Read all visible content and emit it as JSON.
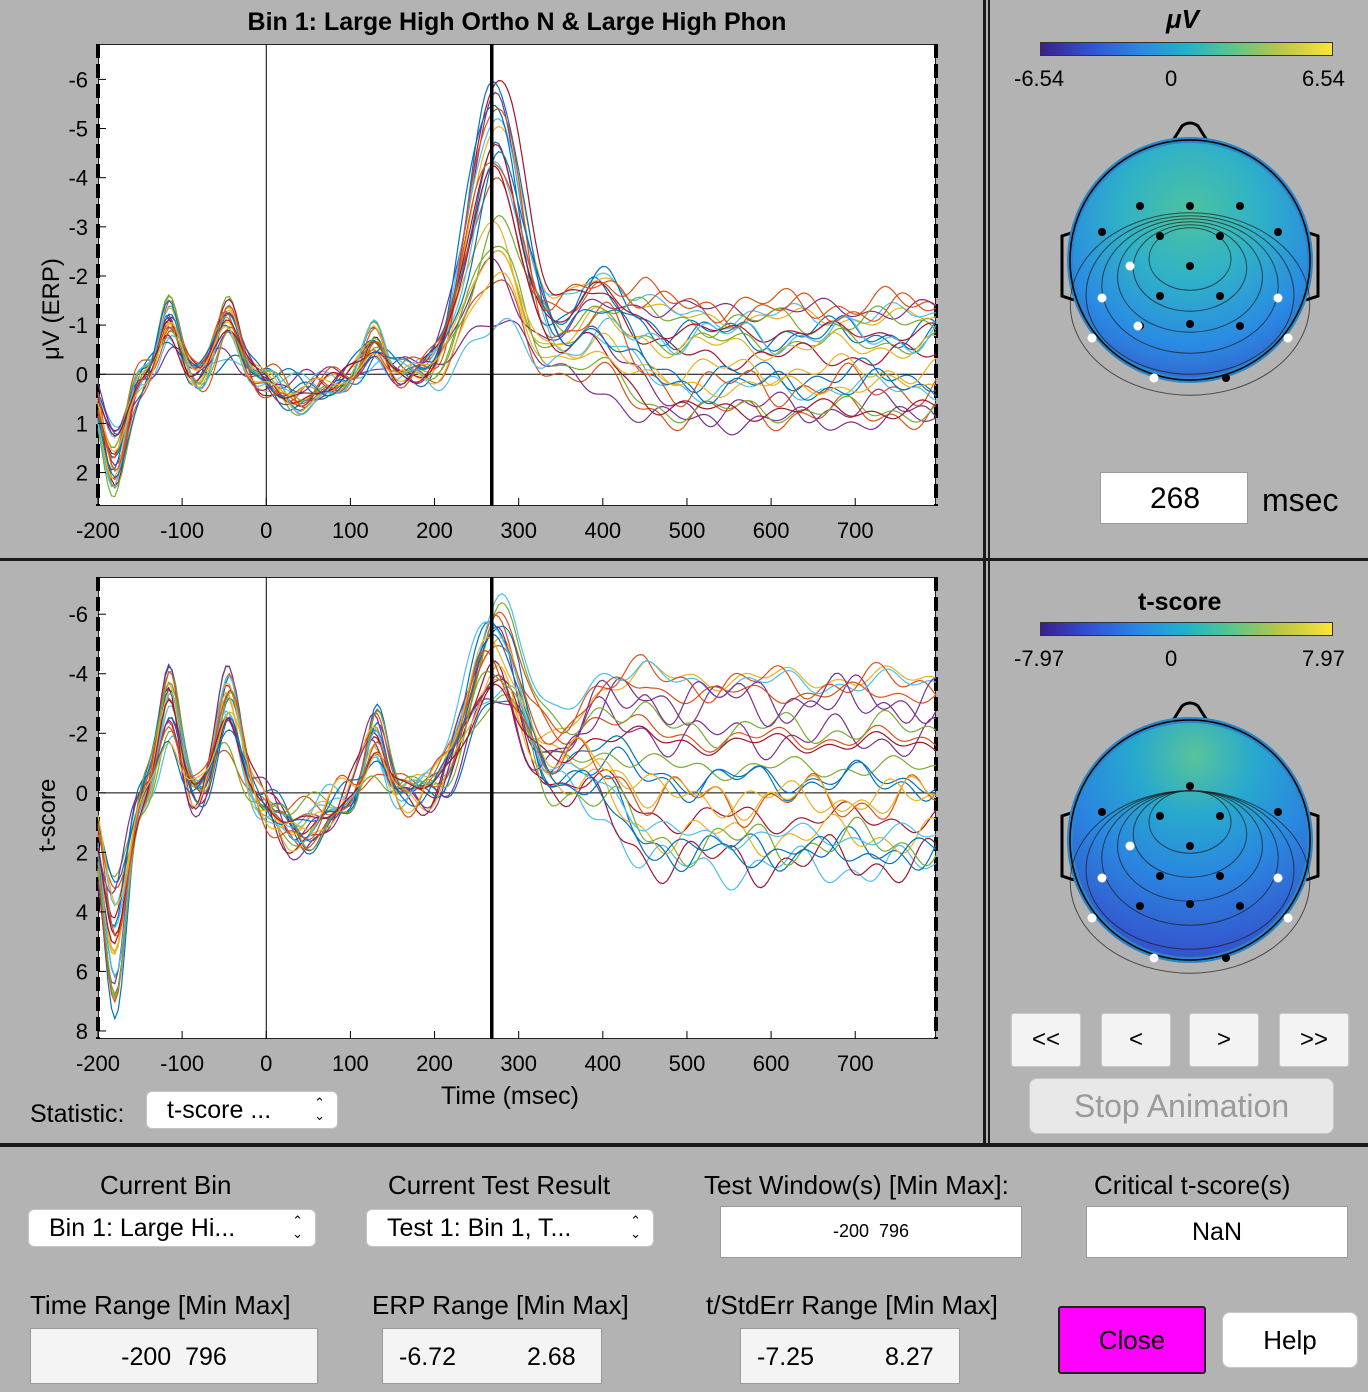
{
  "top_plot": {
    "title": "Bin 1: Large High Ortho N & Large High Phon",
    "ylabel": "μV (ERP)",
    "yticks": [
      "-6",
      "-5",
      "-4",
      "-3",
      "-2",
      "-1",
      "0",
      "1",
      "2"
    ],
    "xticks": [
      "-200",
      "-100",
      "0",
      "100",
      "200",
      "300",
      "400",
      "500",
      "600",
      "700"
    ]
  },
  "bottom_plot": {
    "ylabel": "t-score",
    "xlabel": "Time (msec)",
    "yticks": [
      "-6",
      "-4",
      "-2",
      "0",
      "2",
      "4",
      "6",
      "8"
    ],
    "xticks": [
      "-200",
      "-100",
      "0",
      "100",
      "200",
      "300",
      "400",
      "500",
      "600",
      "700"
    ]
  },
  "chart_data": [
    {
      "type": "line",
      "title": "Bin 1: Large High Ortho N & Large High Phon",
      "xlabel": "",
      "ylabel": "μV (ERP)",
      "xlim": [
        -200,
        796
      ],
      "ylim": [
        -6.72,
        2.68
      ],
      "y_reversed": true,
      "cursor_x": 268,
      "series_count": 24,
      "grid": false
    },
    {
      "type": "line",
      "title": "",
      "xlabel": "Time (msec)",
      "ylabel": "t-score",
      "xlim": [
        -200,
        796
      ],
      "ylim": [
        -7.25,
        8.27
      ],
      "y_reversed": true,
      "cursor_x": 268,
      "series_count": 24,
      "grid": false
    }
  ],
  "topo_top": {
    "colorbar_label": "μV",
    "cb_min": "-6.54",
    "cb_mid": "0",
    "cb_max": "6.54",
    "time_value": "268",
    "time_unit": "msec"
  },
  "topo_bottom": {
    "colorbar_label": "t-score",
    "cb_min": "-7.97",
    "cb_mid": "0",
    "cb_max": "7.97"
  },
  "colormap": [
    "#3b1f8a",
    "#3056d9",
    "#2a8be3",
    "#1fb3c9",
    "#55c78e",
    "#b9c647",
    "#fbe534"
  ],
  "nav": {
    "first": "<<",
    "prev": "<",
    "next": ">",
    "last": ">>",
    "stop": "Stop Animation"
  },
  "statistic": {
    "label": "Statistic:",
    "value": "t-score ..."
  },
  "controls": {
    "current_bin_label": "Current Bin",
    "current_bin_value": "Bin 1: Large Hi...",
    "current_test_label": "Current Test Result",
    "current_test_value": "Test 1: Bin 1, T...",
    "test_window_label": "Test Window(s) [Min Max]:",
    "test_window_value": "-200  796",
    "critical_label": "Critical t-score(s)",
    "critical_value": "NaN",
    "time_range_label": "Time Range [Min Max]",
    "time_range_value": "-200  796",
    "erp_range_label": "ERP Range [Min Max]",
    "erp_range_min": "-6.72",
    "erp_range_max": "2.68",
    "t_range_label": "t/StdErr Range [Min Max]",
    "t_range_min": "-7.25",
    "t_range_max": "8.27",
    "close_label": "Close",
    "help_label": "Help",
    "close_color": "#ff00ff"
  }
}
